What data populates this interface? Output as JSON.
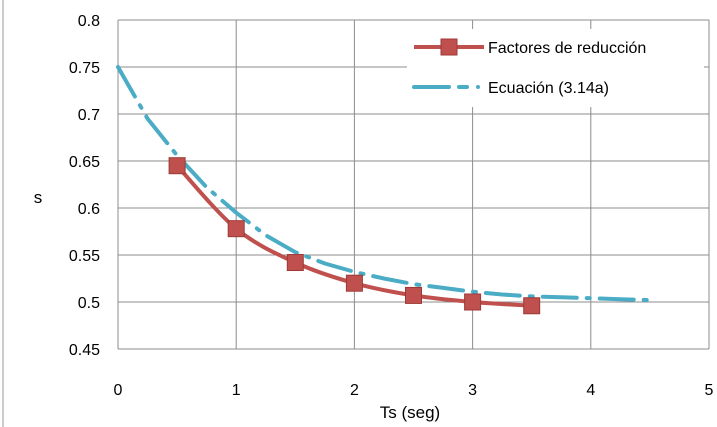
{
  "chart_data": {
    "type": "line",
    "title": "",
    "xlabel": "Ts (seg)",
    "ylabel": "s",
    "xlim": [
      0,
      5
    ],
    "ylim": [
      0.45,
      0.8
    ],
    "x_ticks": [
      0,
      1,
      2,
      3,
      4,
      5
    ],
    "y_ticks": [
      0.45,
      0.5,
      0.55,
      0.6,
      0.65,
      0.7,
      0.75,
      0.8
    ],
    "x_tick_labels": [
      "0",
      "1",
      "2",
      "3",
      "4",
      "5"
    ],
    "y_tick_labels": [
      "0.45",
      "0.5",
      "0.55",
      "0.6",
      "0.65",
      "0.7",
      "0.75",
      "0.8"
    ],
    "grid": true,
    "legend_position": "top-right",
    "series": [
      {
        "name": "Factores de reducción",
        "style": "solid line with square markers",
        "color": "#c0504d",
        "x": [
          0.5,
          1.0,
          1.5,
          2.0,
          2.5,
          3.0,
          3.5
        ],
        "y": [
          0.645,
          0.578,
          0.542,
          0.52,
          0.507,
          0.5,
          0.496
        ]
      },
      {
        "name": "Ecuación (3.14a)",
        "style": "dash-dot line",
        "color": "#4bacc6",
        "x": [
          0,
          0.25,
          0.5,
          0.75,
          1.0,
          1.25,
          1.5,
          1.75,
          2.0,
          2.25,
          2.5,
          2.75,
          3.0,
          3.25,
          3.5,
          3.75,
          4.0,
          4.25,
          4.5
        ],
        "y": [
          0.75,
          0.695,
          0.656,
          0.622,
          0.595,
          0.571,
          0.553,
          0.541,
          0.532,
          0.525,
          0.519,
          0.515,
          0.511,
          0.508,
          0.506,
          0.505,
          0.504,
          0.503,
          0.502
        ]
      }
    ]
  }
}
